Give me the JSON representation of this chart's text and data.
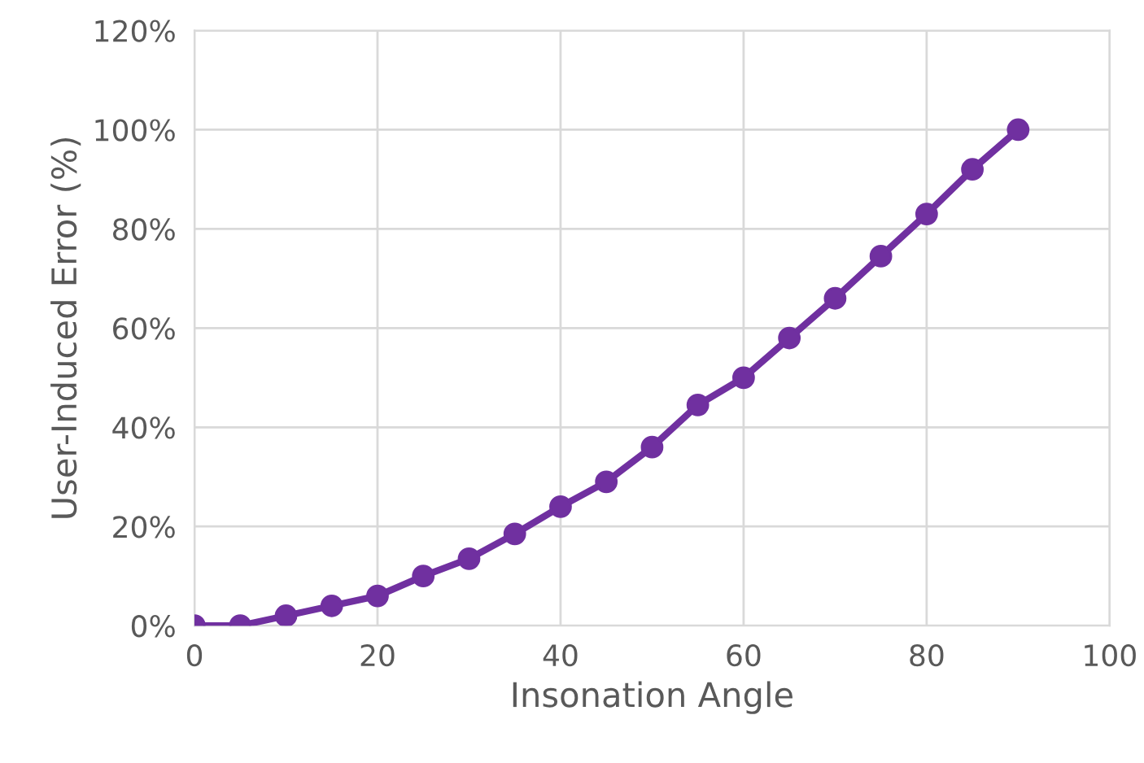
{
  "chart_data": {
    "type": "line",
    "xlabel": "Insonation Angle",
    "ylabel": "User-Induced Error (%)",
    "x": [
      0,
      5,
      10,
      15,
      20,
      25,
      30,
      35,
      40,
      45,
      50,
      55,
      60,
      65,
      70,
      75,
      80,
      85,
      90
    ],
    "series": [
      {
        "color": "#7030a0",
        "values": [
          0,
          0,
          2,
          4,
          6,
          10,
          13.5,
          18.5,
          24,
          29,
          36,
          44.5,
          50,
          58,
          66,
          74.5,
          83,
          92,
          100
        ]
      }
    ],
    "xlim": [
      0,
      100
    ],
    "xticks": [
      0,
      20,
      40,
      60,
      80,
      100
    ],
    "ylim": [
      0,
      120
    ],
    "yticks": [
      {
        "value": 0,
        "label": "0%"
      },
      {
        "value": 20,
        "label": "20%"
      },
      {
        "value": 40,
        "label": "40%"
      },
      {
        "value": 60,
        "label": "60%"
      },
      {
        "value": 80,
        "label": "80%"
      },
      {
        "value": 100,
        "label": "100%"
      },
      {
        "value": 120,
        "label": "120%"
      }
    ],
    "grid": true,
    "marker": "circle",
    "line_style": "solid"
  }
}
